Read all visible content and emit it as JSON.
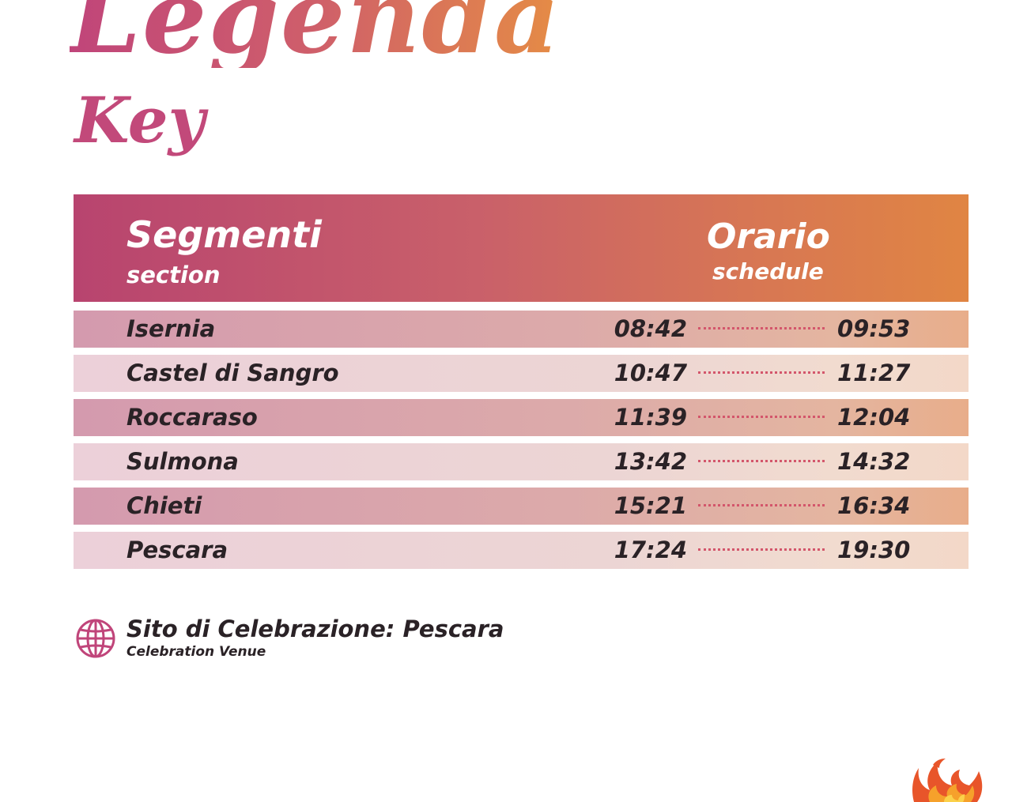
{
  "heading": {
    "title": "Legenda",
    "subtitle": "Key"
  },
  "table": {
    "header": {
      "col1_main": "Segmenti",
      "col1_sub": "section",
      "col2_main": "Orario",
      "col2_sub": "schedule"
    },
    "rows": [
      {
        "segment": "Isernia",
        "start": "08:42",
        "end": "09:53",
        "shade": "dark"
      },
      {
        "segment": "Castel di Sangro",
        "start": "10:47",
        "end": "11:27",
        "shade": "light"
      },
      {
        "segment": "Roccaraso",
        "start": "11:39",
        "end": "12:04",
        "shade": "dark"
      },
      {
        "segment": "Sulmona",
        "start": "13:42",
        "end": "14:32",
        "shade": "light"
      },
      {
        "segment": "Chieti",
        "start": "15:21",
        "end": "16:34",
        "shade": "dark"
      },
      {
        "segment": "Pescara",
        "start": "17:24",
        "end": "19:30",
        "shade": "light"
      }
    ]
  },
  "venue": {
    "icon": "globe-icon",
    "label": "Sito di Celebrazione: Pescara",
    "sublabel": "Celebration Venue"
  },
  "logo": {
    "icon": "flame-logo"
  },
  "colors": {
    "accent_pink": "#c0457a",
    "accent_orange": "#e08543",
    "dotted_line": "#d3566b",
    "text_dark": "#2a2226"
  }
}
